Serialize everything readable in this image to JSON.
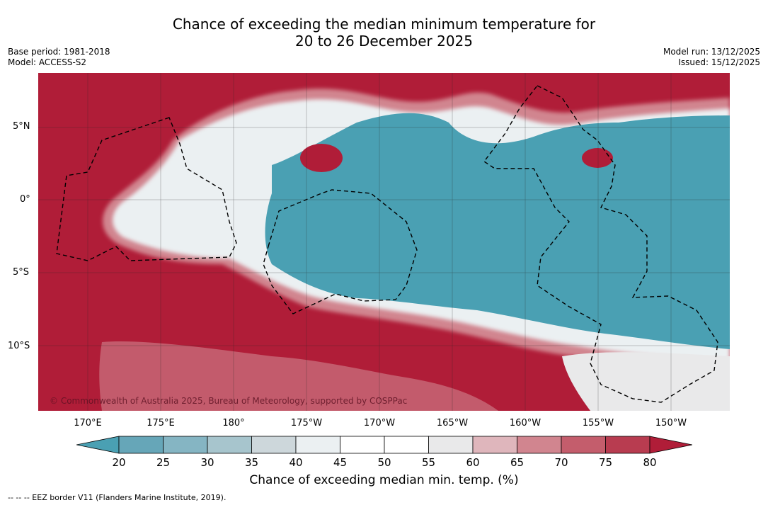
{
  "title": {
    "line1": "Chance of exceeding the median minimum temperature for",
    "line2": "20 to 26 December 2025"
  },
  "meta": {
    "base_period": "Base period: 1981-2018",
    "model": "Model: ACCESS-S2",
    "model_run": "Model run: 13/12/2025",
    "issued": "Issued: 15/12/2025"
  },
  "axes": {
    "lat_labels": [
      "5°N",
      "0°",
      "5°S",
      "10°S"
    ],
    "lon_labels": [
      "170°E",
      "175°E",
      "180°",
      "175°W",
      "170°W",
      "165°W",
      "160°W",
      "155°W",
      "150°W"
    ]
  },
  "colorbar": {
    "ticks": [
      "20",
      "25",
      "30",
      "35",
      "40",
      "45",
      "50",
      "55",
      "60",
      "65",
      "70",
      "75",
      "80"
    ],
    "colors": [
      "#4aa0b3",
      "#66a6b8",
      "#85b5c3",
      "#a7c5cd",
      "#cdd7db",
      "#ebf0f2",
      "#ffffff",
      "#ffffff",
      "#e9e9ea",
      "#dfb6bc",
      "#d1858f",
      "#c45d6c",
      "#b83c50",
      "#b01d38"
    ],
    "label": "Chance of exceeding median min. temp. (%)"
  },
  "copyright": "© Commonwealth of Australia 2025, Bureau of Meteorology, supported by COSPPac",
  "footnote": "--  --  -- EEZ border V11 (Flanders Marine Institute, 2019).",
  "palette": {
    "warm": "#b01d38",
    "cool": "#4aa0b3"
  }
}
